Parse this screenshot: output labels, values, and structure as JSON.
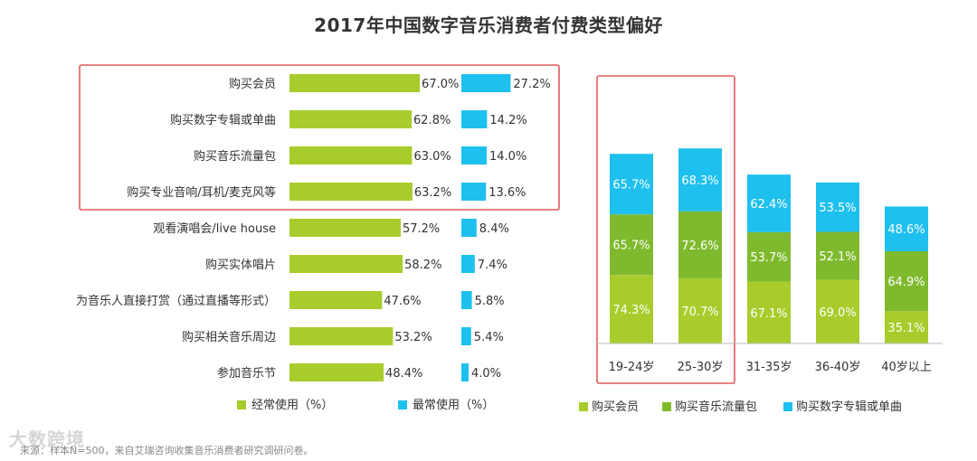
{
  "title": "2017年中国数字音乐消费者付费类型偏好",
  "source": "来源：样本N=500，来自艾瑞咨询收集音乐消费者研究调研问卷。",
  "watermark": "大数跨境",
  "colors": {
    "green": "#a8cc2c",
    "green_dark": "#7fba2e",
    "blue": "#1ec0ee",
    "highlight": "#e25a5a"
  },
  "chart_data": [
    {
      "type": "bar",
      "orientation": "horizontal",
      "categories": [
        "购买会员",
        "购买数字专辑或单曲",
        "购买音乐流量包",
        "购买专业音响/耳机/麦克风等",
        "观看演唱会/live house",
        "购买实体唱片",
        "为音乐人直接打赏（通过直播等形式）",
        "购买相关音乐周边",
        "参加音乐节"
      ],
      "series": [
        {
          "name": "经常使用（%）",
          "values": [
            67.0,
            62.8,
            63.0,
            63.2,
            57.2,
            58.2,
            47.6,
            53.2,
            48.4
          ]
        },
        {
          "name": "最常使用（%）",
          "values": [
            27.2,
            14.2,
            14.0,
            13.6,
            8.4,
            7.4,
            5.8,
            5.4,
            4.0
          ]
        }
      ],
      "value_labels": {
        "经常使用（%）": [
          "67.0%",
          "62.8%",
          "63.0%",
          "63.2%",
          "57.2%",
          "58.2%",
          "47.6%",
          "53.2%",
          "48.4%"
        ],
        "最常使用（%）": [
          "27.2%",
          "14.2%",
          "14.0%",
          "13.6%",
          "8.4%",
          "7.4%",
          "5.8%",
          "5.4%",
          "4.0%"
        ]
      },
      "highlighted_categories": [
        0,
        1,
        2,
        3
      ],
      "legend_position": "bottom",
      "grid": false
    },
    {
      "type": "bar",
      "stacked": true,
      "categories": [
        "19-24岁",
        "25-30岁",
        "31-35岁",
        "36-40岁",
        "40岁以上"
      ],
      "series": [
        {
          "name": "购买会员",
          "values": [
            74.3,
            70.7,
            67.1,
            69.0,
            35.1
          ],
          "labels": [
            "74.3%",
            "70.7%",
            "67.1%",
            "69.0%",
            "35.1%"
          ]
        },
        {
          "name": "购买音乐流量包",
          "values": [
            65.7,
            72.6,
            53.7,
            52.1,
            64.9
          ],
          "labels": [
            "65.7%",
            "72.6%",
            "53.7%",
            "52.1%",
            "64.9%"
          ]
        },
        {
          "name": "购买数字专辑或单曲",
          "values": [
            65.7,
            68.3,
            62.4,
            53.5,
            48.6
          ],
          "labels": [
            "65.7%",
            "68.3%",
            "62.4%",
            "53.5%",
            "48.6%"
          ]
        }
      ],
      "highlighted_categories": [
        0,
        1
      ],
      "legend_position": "bottom",
      "grid": false
    }
  ]
}
